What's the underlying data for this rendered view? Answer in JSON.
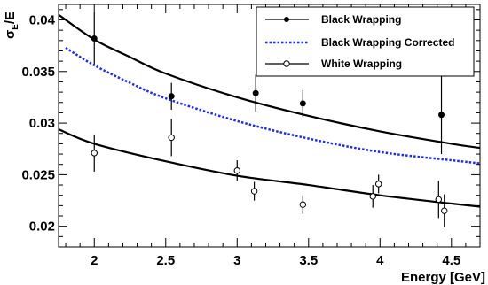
{
  "chart_data": {
    "type": "scatter",
    "xlabel": "Energy [GeV]",
    "ylabel": "σ_E/E",
    "ylabel_main": "σ",
    "ylabel_sub": "E",
    "ylabel_tail": "/E",
    "xlim": [
      1.75,
      4.7
    ],
    "ylim": [
      0.018,
      0.0415
    ],
    "xticks": [
      2,
      2.5,
      3,
      3.5,
      4,
      4.5
    ],
    "xtick_labels": [
      "2",
      "2.5",
      "3",
      "3.5",
      "4",
      "4.5"
    ],
    "yticks": [
      0.02,
      0.025,
      0.03,
      0.035,
      0.04
    ],
    "ytick_labels": [
      "0.02",
      "0.025",
      "0.03",
      "0.035",
      "0.04"
    ],
    "grid": false,
    "legend_position": "top-right",
    "series": [
      {
        "name": "Black Wrapping",
        "marker": "filled-circle",
        "color": "#000000",
        "points": [
          {
            "x": 2.0,
            "y": 0.0382,
            "err": 0.0025
          },
          {
            "x": 2.54,
            "y": 0.0326,
            "err": 0.0013
          },
          {
            "x": 3.13,
            "y": 0.0329,
            "err": 0.0018
          },
          {
            "x": 3.46,
            "y": 0.0319,
            "err": 0.0013
          },
          {
            "x": 4.43,
            "y": 0.0308,
            "err": 0.0038
          }
        ],
        "fit": [
          {
            "x": 1.75,
            "y": 0.0405
          },
          {
            "x": 2.0,
            "y": 0.0381
          },
          {
            "x": 2.25,
            "y": 0.0364
          },
          {
            "x": 2.5,
            "y": 0.0348
          },
          {
            "x": 3.0,
            "y": 0.0325
          },
          {
            "x": 3.5,
            "y": 0.0307
          },
          {
            "x": 4.0,
            "y": 0.0292
          },
          {
            "x": 4.5,
            "y": 0.028
          },
          {
            "x": 4.7,
            "y": 0.0276
          }
        ]
      },
      {
        "name": "Black Wrapping Corrected",
        "line_style": "dotted",
        "color": "#1f2fe0",
        "fit": [
          {
            "x": 1.8,
            "y": 0.0373
          },
          {
            "x": 2.0,
            "y": 0.0356
          },
          {
            "x": 2.25,
            "y": 0.0339
          },
          {
            "x": 2.5,
            "y": 0.0324
          },
          {
            "x": 3.0,
            "y": 0.0302
          },
          {
            "x": 3.5,
            "y": 0.0285
          },
          {
            "x": 4.0,
            "y": 0.0272
          },
          {
            "x": 4.5,
            "y": 0.0264
          },
          {
            "x": 4.7,
            "y": 0.0261
          }
        ]
      },
      {
        "name": "White Wrapping",
        "marker": "open-circle",
        "color": "#000000",
        "points": [
          {
            "x": 2.0,
            "y": 0.0271,
            "err": 0.0018
          },
          {
            "x": 2.54,
            "y": 0.0286,
            "err": 0.0018
          },
          {
            "x": 3.0,
            "y": 0.0254,
            "err": 0.001
          },
          {
            "x": 3.12,
            "y": 0.0234,
            "err": 0.0009
          },
          {
            "x": 3.46,
            "y": 0.0221,
            "err": 0.0009
          },
          {
            "x": 3.95,
            "y": 0.0229,
            "err": 0.0011
          },
          {
            "x": 3.99,
            "y": 0.0241,
            "err": 0.0009
          },
          {
            "x": 4.41,
            "y": 0.0226,
            "err": 0.0018
          },
          {
            "x": 4.45,
            "y": 0.0215,
            "err": 0.0016
          }
        ],
        "fit": [
          {
            "x": 1.75,
            "y": 0.0294
          },
          {
            "x": 2.0,
            "y": 0.028
          },
          {
            "x": 2.5,
            "y": 0.0263
          },
          {
            "x": 3.0,
            "y": 0.0249
          },
          {
            "x": 3.5,
            "y": 0.024
          },
          {
            "x": 4.0,
            "y": 0.023
          },
          {
            "x": 4.5,
            "y": 0.0222
          },
          {
            "x": 4.7,
            "y": 0.0219
          }
        ]
      }
    ]
  }
}
